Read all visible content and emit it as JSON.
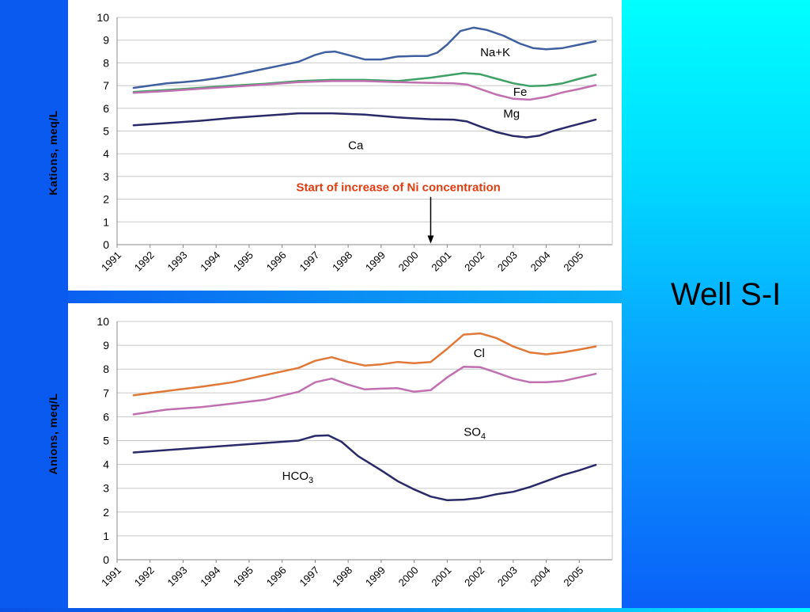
{
  "slide": {
    "title": "Well S-I"
  },
  "colors": {
    "na_k": "#3f5fa0",
    "fe": "#3fa066",
    "mg": "#c070b0",
    "ca": "#2a2a6a",
    "cl": "#e07838",
    "so4": "#c070b0",
    "hco3": "#2a2a6a",
    "annotation": "#e03c10"
  },
  "chart_data": [
    {
      "type": "line",
      "ylabel": "Kations, meq/L",
      "xlabel": "",
      "ylim": [
        0,
        10
      ],
      "yticks": [
        "0",
        "1",
        "2",
        "3",
        "4",
        "5",
        "6",
        "7",
        "8",
        "9",
        "10"
      ],
      "xticks": [
        "1991",
        "1992",
        "1993",
        "1994",
        "1995",
        "1996",
        "1997",
        "1998",
        "1999",
        "2000",
        "2001",
        "2002",
        "2003",
        "2004",
        "2005"
      ],
      "xlim": [
        1991,
        2006
      ],
      "grid": "horizontal",
      "annotation": {
        "text": "Start of increase of Ni concentration",
        "x": 2000.5
      },
      "series": [
        {
          "name": "Na+K",
          "color_key": "na_k",
          "label": "Na+K",
          "label_at": [
            2002.0,
            8.3
          ],
          "points": [
            [
              1991.5,
              6.9
            ],
            [
              1992,
              7.0
            ],
            [
              1992.5,
              7.1
            ],
            [
              1993,
              7.15
            ],
            [
              1993.5,
              7.22
            ],
            [
              1994,
              7.32
            ],
            [
              1994.5,
              7.45
            ],
            [
              1995,
              7.6
            ],
            [
              1995.5,
              7.75
            ],
            [
              1996,
              7.9
            ],
            [
              1996.5,
              8.05
            ],
            [
              1997,
              8.35
            ],
            [
              1997.3,
              8.47
            ],
            [
              1997.6,
              8.5
            ],
            [
              1998,
              8.35
            ],
            [
              1998.5,
              8.15
            ],
            [
              1999,
              8.15
            ],
            [
              1999.5,
              8.28
            ],
            [
              2000,
              8.3
            ],
            [
              2000.4,
              8.3
            ],
            [
              2000.7,
              8.45
            ],
            [
              2001,
              8.8
            ],
            [
              2001.4,
              9.4
            ],
            [
              2001.8,
              9.55
            ],
            [
              2002.2,
              9.45
            ],
            [
              2002.7,
              9.2
            ],
            [
              2003.2,
              8.85
            ],
            [
              2003.6,
              8.65
            ],
            [
              2004,
              8.6
            ],
            [
              2004.5,
              8.65
            ],
            [
              2005,
              8.8
            ],
            [
              2005.5,
              8.95
            ]
          ]
        },
        {
          "name": "Fe",
          "color_key": "fe",
          "label": "Fe",
          "label_at": [
            2003.0,
            6.55
          ],
          "points": [
            [
              1991.5,
              6.72
            ],
            [
              1992.5,
              6.8
            ],
            [
              1993.5,
              6.9
            ],
            [
              1994.5,
              7.0
            ],
            [
              1995.5,
              7.08
            ],
            [
              1996.5,
              7.2
            ],
            [
              1997.5,
              7.25
            ],
            [
              1998.5,
              7.25
            ],
            [
              1999.5,
              7.2
            ],
            [
              2000.5,
              7.35
            ],
            [
              2001,
              7.45
            ],
            [
              2001.5,
              7.55
            ],
            [
              2002,
              7.5
            ],
            [
              2002.5,
              7.3
            ],
            [
              2003,
              7.1
            ],
            [
              2003.5,
              6.98
            ],
            [
              2004,
              7.0
            ],
            [
              2004.5,
              7.1
            ],
            [
              2005,
              7.3
            ],
            [
              2005.5,
              7.48
            ]
          ]
        },
        {
          "name": "Mg",
          "color_key": "mg",
          "label": "Mg",
          "label_at": [
            2002.7,
            5.6
          ],
          "points": [
            [
              1991.5,
              6.68
            ],
            [
              1992.5,
              6.76
            ],
            [
              1993.5,
              6.86
            ],
            [
              1994.5,
              6.95
            ],
            [
              1995.5,
              7.05
            ],
            [
              1996.5,
              7.15
            ],
            [
              1997.5,
              7.2
            ],
            [
              1998.5,
              7.2
            ],
            [
              1999.5,
              7.15
            ],
            [
              2000.5,
              7.12
            ],
            [
              2001.2,
              7.1
            ],
            [
              2001.6,
              7.05
            ],
            [
              2002,
              6.85
            ],
            [
              2002.5,
              6.6
            ],
            [
              2003,
              6.42
            ],
            [
              2003.5,
              6.38
            ],
            [
              2004,
              6.5
            ],
            [
              2004.5,
              6.7
            ],
            [
              2005,
              6.85
            ],
            [
              2005.5,
              7.02
            ]
          ]
        },
        {
          "name": "Ca",
          "color_key": "ca",
          "label": "Ca",
          "label_at": [
            1998.0,
            4.2
          ],
          "points": [
            [
              1991.5,
              5.25
            ],
            [
              1992.5,
              5.35
            ],
            [
              1993.5,
              5.45
            ],
            [
              1994.5,
              5.58
            ],
            [
              1995.5,
              5.68
            ],
            [
              1996.5,
              5.78
            ],
            [
              1997.5,
              5.78
            ],
            [
              1998.5,
              5.72
            ],
            [
              1999.5,
              5.6
            ],
            [
              2000.5,
              5.52
            ],
            [
              2001.2,
              5.5
            ],
            [
              2001.6,
              5.42
            ],
            [
              2002,
              5.2
            ],
            [
              2002.5,
              4.95
            ],
            [
              2003,
              4.78
            ],
            [
              2003.4,
              4.72
            ],
            [
              2003.8,
              4.8
            ],
            [
              2004.2,
              5.0
            ],
            [
              2004.7,
              5.2
            ],
            [
              2005.5,
              5.5
            ]
          ]
        }
      ]
    },
    {
      "type": "line",
      "ylabel": "Anions, meq/L",
      "xlabel": "",
      "ylim": [
        0,
        10
      ],
      "yticks": [
        "0",
        "1",
        "2",
        "3",
        "4",
        "5",
        "6",
        "7",
        "8",
        "9",
        "10"
      ],
      "xticks": [
        "1991",
        "1992",
        "1993",
        "1994",
        "1995",
        "1996",
        "1997",
        "1998",
        "1999",
        "2000",
        "2001",
        "2002",
        "2003",
        "2004",
        "2005"
      ],
      "xlim": [
        1991,
        2006
      ],
      "grid": "horizontal",
      "series": [
        {
          "name": "Cl",
          "color_key": "cl",
          "label": "Cl",
          "label_at": [
            2001.8,
            8.5
          ],
          "points": [
            [
              1991.5,
              6.9
            ],
            [
              1992.5,
              7.08
            ],
            [
              1993.5,
              7.25
            ],
            [
              1994.5,
              7.45
            ],
            [
              1995.5,
              7.75
            ],
            [
              1996.5,
              8.05
            ],
            [
              1997,
              8.35
            ],
            [
              1997.5,
              8.5
            ],
            [
              1998,
              8.3
            ],
            [
              1998.5,
              8.15
            ],
            [
              1999,
              8.2
            ],
            [
              1999.5,
              8.3
            ],
            [
              2000,
              8.25
            ],
            [
              2000.5,
              8.3
            ],
            [
              2001,
              8.85
            ],
            [
              2001.5,
              9.45
            ],
            [
              2002,
              9.5
            ],
            [
              2002.5,
              9.3
            ],
            [
              2003,
              8.95
            ],
            [
              2003.5,
              8.7
            ],
            [
              2004,
              8.62
            ],
            [
              2004.5,
              8.7
            ],
            [
              2005,
              8.82
            ],
            [
              2005.5,
              8.95
            ]
          ]
        },
        {
          "name": "SO4",
          "color_key": "so4",
          "label": "SO",
          "label_sub": "4",
          "label_at": [
            2001.5,
            5.2
          ],
          "points": [
            [
              1991.5,
              6.1
            ],
            [
              1992.5,
              6.3
            ],
            [
              1993.5,
              6.4
            ],
            [
              1994.5,
              6.55
            ],
            [
              1995.5,
              6.72
            ],
            [
              1996.5,
              7.05
            ],
            [
              1997,
              7.45
            ],
            [
              1997.5,
              7.6
            ],
            [
              1998,
              7.35
            ],
            [
              1998.5,
              7.15
            ],
            [
              1999,
              7.18
            ],
            [
              1999.5,
              7.2
            ],
            [
              2000,
              7.05
            ],
            [
              2000.5,
              7.12
            ],
            [
              2001,
              7.65
            ],
            [
              2001.5,
              8.1
            ],
            [
              2002,
              8.08
            ],
            [
              2002.5,
              7.85
            ],
            [
              2003,
              7.6
            ],
            [
              2003.5,
              7.45
            ],
            [
              2004,
              7.45
            ],
            [
              2004.5,
              7.5
            ],
            [
              2005,
              7.65
            ],
            [
              2005.5,
              7.8
            ]
          ]
        },
        {
          "name": "HCO3",
          "color_key": "hco3",
          "label": "HCO",
          "label_sub": "3",
          "label_at": [
            1996.0,
            3.35
          ],
          "points": [
            [
              1991.5,
              4.5
            ],
            [
              1992.5,
              4.6
            ],
            [
              1993.5,
              4.7
            ],
            [
              1994.5,
              4.8
            ],
            [
              1995.5,
              4.9
            ],
            [
              1996.5,
              5.0
            ],
            [
              1997,
              5.2
            ],
            [
              1997.4,
              5.22
            ],
            [
              1997.8,
              4.95
            ],
            [
              1998.3,
              4.35
            ],
            [
              1999,
              3.75
            ],
            [
              1999.5,
              3.3
            ],
            [
              2000,
              2.95
            ],
            [
              2000.5,
              2.65
            ],
            [
              2001,
              2.5
            ],
            [
              2001.5,
              2.52
            ],
            [
              2002,
              2.6
            ],
            [
              2002.5,
              2.75
            ],
            [
              2003,
              2.85
            ],
            [
              2003.5,
              3.05
            ],
            [
              2004,
              3.3
            ],
            [
              2004.5,
              3.55
            ],
            [
              2005,
              3.75
            ],
            [
              2005.5,
              3.98
            ]
          ]
        }
      ]
    }
  ]
}
